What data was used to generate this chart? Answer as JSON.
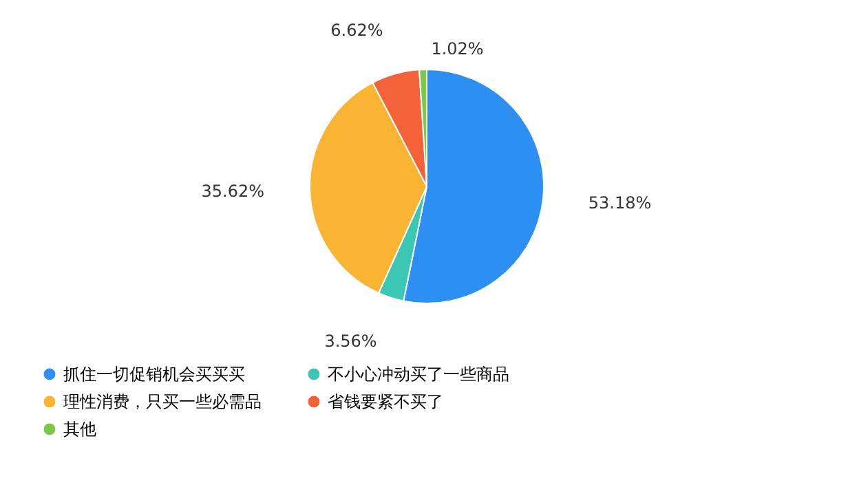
{
  "chart_data": {
    "type": "pie",
    "categories": [
      "抓住一切促销机会买买买",
      "不小心冲动买了一些商品",
      "理性消费，只买一些必需品",
      "省钱要紧不买了",
      "其他"
    ],
    "values": [
      53.18,
      3.56,
      35.62,
      6.62,
      1.02
    ],
    "colors": [
      "#2e8ff2",
      "#3cc7b5",
      "#f9b434",
      "#f4623a",
      "#7cc94a"
    ],
    "value_labels": [
      "53.18%",
      "3.56%",
      "35.62%",
      "6.62%",
      "1.02%"
    ],
    "legend": "bottom"
  }
}
